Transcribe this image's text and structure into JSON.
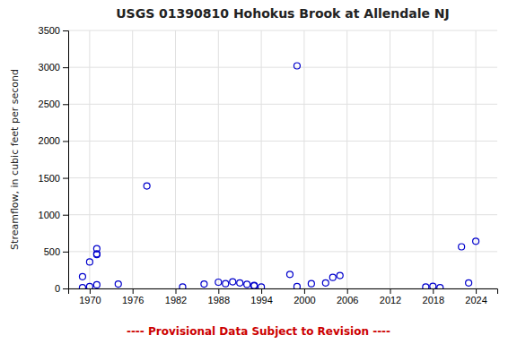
{
  "chart_data": {
    "type": "scatter",
    "title": "USGS 01390810 Hohokus Brook at Allendale NJ",
    "ylabel": "Streamflow, in cubic feet per second",
    "x": [
      1969,
      1969,
      1970,
      1970,
      1971,
      1971,
      1971,
      1971,
      1974,
      1978,
      1983,
      1986,
      1988,
      1989,
      1990,
      1991,
      1992,
      1993,
      1993,
      1994,
      1998,
      1999,
      1999,
      2001,
      2003,
      2004,
      2005,
      2017,
      2018,
      2019,
      2022,
      2023,
      2024
    ],
    "values": [
      160,
      10,
      360,
      25,
      470,
      540,
      460,
      50,
      60,
      1390,
      20,
      60,
      85,
      65,
      90,
      75,
      55,
      40,
      35,
      20,
      190,
      3020,
      25,
      65,
      75,
      150,
      175,
      20,
      30,
      10,
      565,
      75,
      640
    ],
    "color": "#0000cc",
    "marker": "open-circle",
    "xlim": [
      1967,
      2027
    ],
    "ylim": [
      0,
      3500
    ],
    "xticks": [
      1970,
      1976,
      1982,
      1988,
      1994,
      2000,
      2006,
      2012,
      2018,
      2024
    ],
    "yticks": [
      0,
      500,
      1000,
      1500,
      2000,
      2500,
      3000,
      3500
    ],
    "grid": true,
    "annotations": [
      {
        "text": "---- Provisional Data Subject to Revision ----",
        "color": "#cc0000"
      }
    ]
  }
}
